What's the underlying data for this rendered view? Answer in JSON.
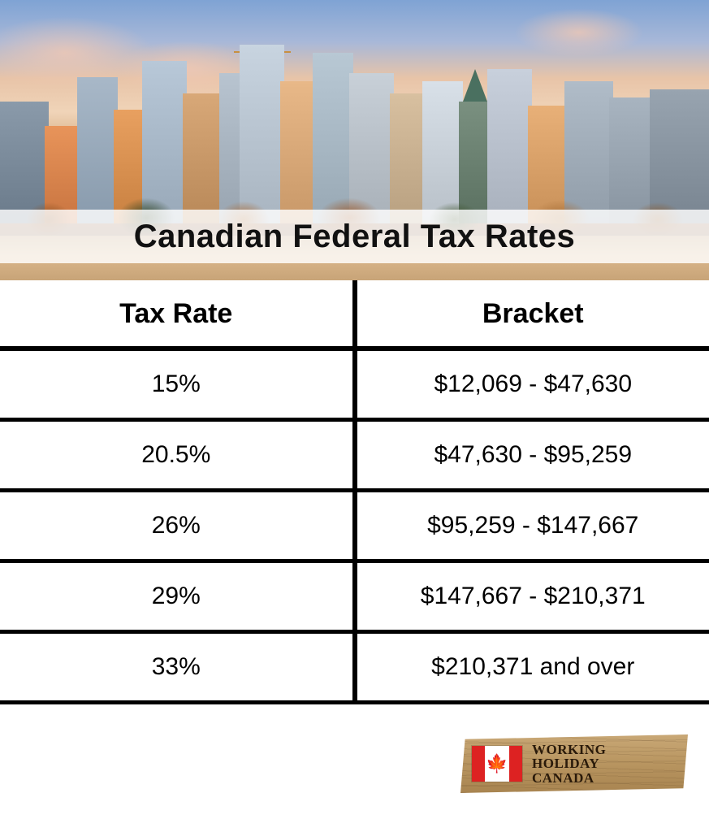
{
  "title": "Canadian Federal Tax Rates",
  "table": {
    "columns": [
      "Tax Rate",
      "Bracket"
    ],
    "rows": [
      [
        "15%",
        "$12,069 - $47,630"
      ],
      [
        "20.5%",
        "$47,630 - $95,259"
      ],
      [
        "26%",
        "$95,259 - $147,667"
      ],
      [
        "29%",
        "$147,667 - $210,371"
      ],
      [
        "33%",
        "$210,371 and over"
      ]
    ],
    "header_fontsize": 34,
    "cell_fontsize": 30,
    "border_color": "#000000",
    "border_width_header": 6,
    "border_width_row": 5,
    "text_color": "#000000",
    "background_color": "#ffffff"
  },
  "title_style": {
    "fontsize": 40,
    "font_weight": 900,
    "color": "#111111",
    "strip_background": "rgba(255,255,255,0.82)"
  },
  "hero": {
    "description": "city-skyline-waterfront",
    "sky_gradient": [
      "#7fa3d4",
      "#a8b8d8",
      "#e8c4a8",
      "#f0d4b8",
      "#c89868",
      "#a87048",
      "#8a6850",
      "#6a5840"
    ]
  },
  "logo": {
    "line1": "WORKING",
    "line2": "HOLIDAY",
    "line3": "CANADA",
    "plank_colors": [
      "#c9a876",
      "#b89560",
      "#a88450"
    ],
    "flag_red": "#dd2222",
    "flag_white": "#ffffff",
    "text_color": "#2a1a0a"
  }
}
